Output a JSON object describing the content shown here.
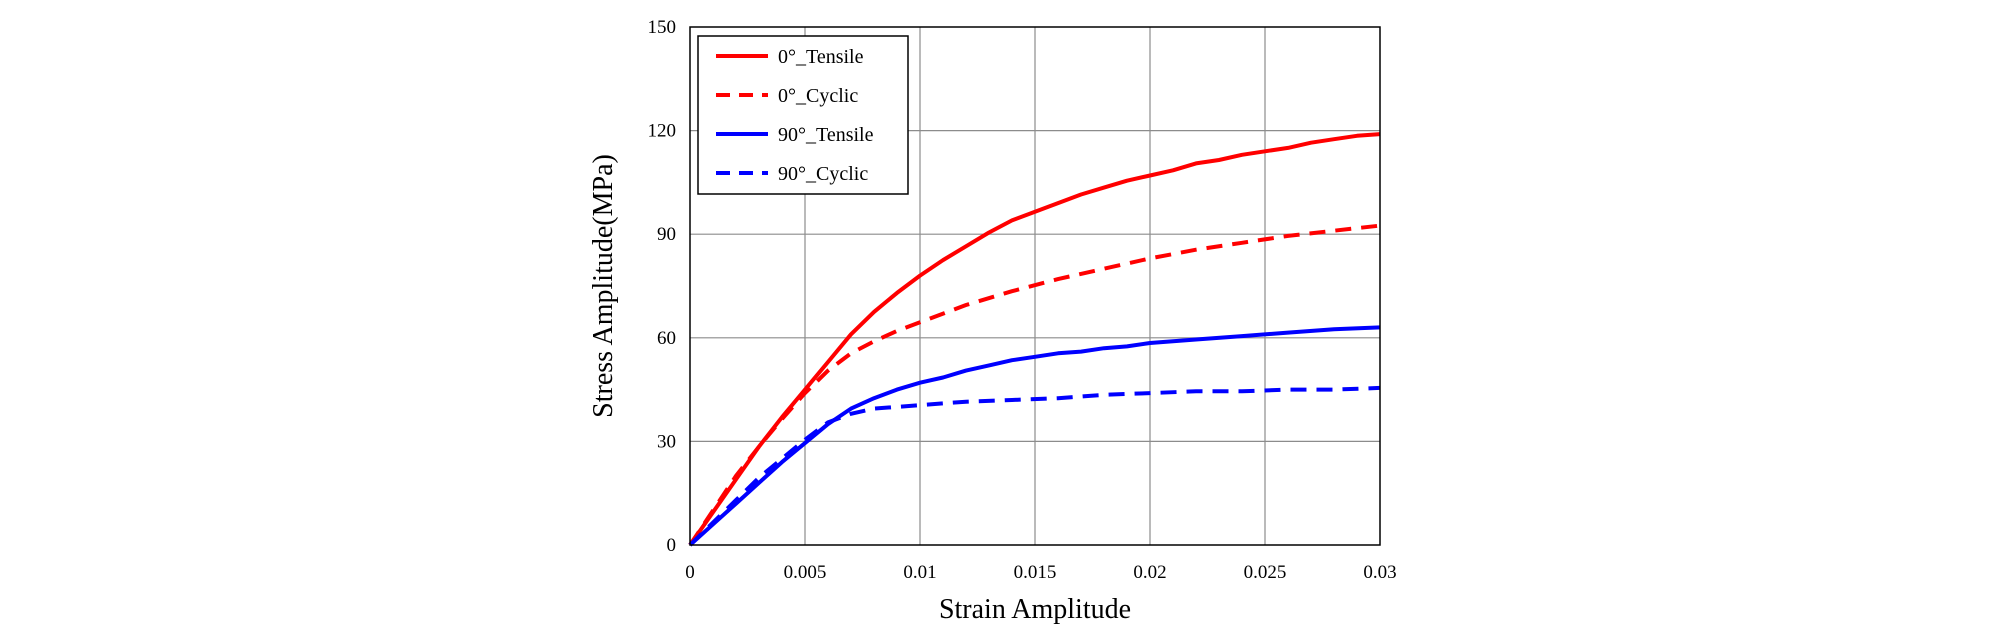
{
  "chart_data": {
    "type": "line",
    "title": "",
    "xlabel": "Strain Amplitude",
    "ylabel": "Stress Amplitude(MPa)",
    "xlim": [
      0,
      0.03
    ],
    "ylim": [
      0,
      150
    ],
    "x_ticks": [
      0,
      0.005,
      0.01,
      0.015,
      0.02,
      0.025,
      0.03
    ],
    "x_tick_labels": [
      "0",
      "0.005",
      "0.01",
      "0.015",
      "0.02",
      "0.025",
      "0.03"
    ],
    "y_ticks": [
      0,
      30,
      60,
      90,
      120,
      150
    ],
    "y_tick_labels": [
      "0",
      "30",
      "60",
      "90",
      "120",
      "150"
    ],
    "grid": true,
    "legend_position": "top-left",
    "series": [
      {
        "name": "0°_Tensile",
        "color": "#ff0000",
        "line_style": "solid",
        "x": [
          0,
          0.001,
          0.002,
          0.003,
          0.004,
          0.005,
          0.006,
          0.007,
          0.008,
          0.009,
          0.01,
          0.011,
          0.012,
          0.013,
          0.014,
          0.015,
          0.016,
          0.017,
          0.018,
          0.019,
          0.02,
          0.021,
          0.022,
          0.023,
          0.024,
          0.025,
          0.026,
          0.027,
          0.028,
          0.029,
          0.03
        ],
        "y": [
          0,
          9.5,
          19,
          28.5,
          37,
          45,
          53,
          61,
          67.5,
          73,
          78,
          82.5,
          86.5,
          90.5,
          94,
          96.5,
          99,
          101.5,
          103.5,
          105.5,
          107,
          108.5,
          110.5,
          111.5,
          113,
          114,
          115,
          116.5,
          117.5,
          118.5,
          119
        ]
      },
      {
        "name": "0°_Cyclic",
        "color": "#ff0000",
        "line_style": "dashed",
        "x": [
          0,
          0.001,
          0.002,
          0.003,
          0.004,
          0.005,
          0.006,
          0.007,
          0.008,
          0.009,
          0.01,
          0.012,
          0.014,
          0.016,
          0.018,
          0.02,
          0.022,
          0.024,
          0.026,
          0.028,
          0.03
        ],
        "y": [
          0,
          10,
          20,
          28.5,
          36.5,
          44,
          50.5,
          55.5,
          59,
          62,
          64.5,
          69.5,
          73.5,
          77,
          80,
          83,
          85.5,
          87.5,
          89.5,
          91,
          92.5
        ]
      },
      {
        "name": "90°_Tensile",
        "color": "#0000ff",
        "line_style": "solid",
        "x": [
          0,
          0.001,
          0.002,
          0.003,
          0.004,
          0.005,
          0.006,
          0.007,
          0.008,
          0.009,
          0.01,
          0.011,
          0.012,
          0.013,
          0.014,
          0.015,
          0.016,
          0.017,
          0.018,
          0.019,
          0.02,
          0.022,
          0.024,
          0.026,
          0.028,
          0.03
        ],
        "y": [
          0,
          6,
          12,
          18,
          24,
          29.5,
          35,
          39.5,
          42.5,
          45,
          47,
          48.5,
          50.5,
          52,
          53.5,
          54.5,
          55.5,
          56,
          57,
          57.5,
          58.5,
          59.5,
          60.5,
          61.5,
          62.5,
          63
        ]
      },
      {
        "name": "90°_Cyclic",
        "color": "#0000ff",
        "line_style": "dashed",
        "x": [
          0,
          0.001,
          0.002,
          0.003,
          0.004,
          0.005,
          0.006,
          0.007,
          0.008,
          0.009,
          0.01,
          0.012,
          0.014,
          0.016,
          0.018,
          0.02,
          0.022,
          0.024,
          0.026,
          0.028,
          0.03
        ],
        "y": [
          0,
          6.5,
          13,
          19.5,
          25,
          30.5,
          35.5,
          38,
          39.5,
          40,
          40.5,
          41.5,
          42,
          42.5,
          43.5,
          44,
          44.5,
          44.5,
          45,
          45,
          45.5
        ]
      }
    ]
  }
}
